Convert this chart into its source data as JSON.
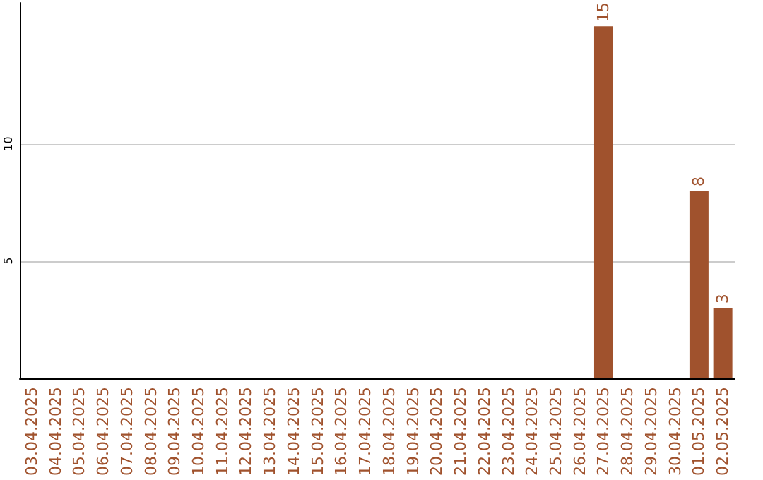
{
  "chart_data": {
    "type": "bar",
    "categories": [
      "03.04.2025",
      "04.04.2025",
      "05.04.2025",
      "06.04.2025",
      "07.04.2025",
      "08.04.2025",
      "09.04.2025",
      "10.04.2025",
      "11.04.2025",
      "12.04.2025",
      "13.04.2025",
      "14.04.2025",
      "15.04.2025",
      "16.04.2025",
      "17.04.2025",
      "18.04.2025",
      "19.04.2025",
      "20.04.2025",
      "21.04.2025",
      "22.04.2025",
      "23.04.2025",
      "24.04.2025",
      "25.04.2025",
      "26.04.2025",
      "27.04.2025",
      "28.04.2025",
      "29.04.2025",
      "30.04.2025",
      "01.05.2025",
      "02.05.2025"
    ],
    "values": [
      0,
      0,
      0,
      0,
      0,
      0,
      0,
      0,
      0,
      0,
      0,
      0,
      0,
      0,
      0,
      0,
      0,
      0,
      0,
      0,
      0,
      0,
      0,
      0,
      15,
      0,
      0,
      0,
      8,
      3
    ],
    "value_labels": [
      null,
      null,
      null,
      null,
      null,
      null,
      null,
      null,
      null,
      null,
      null,
      null,
      null,
      null,
      null,
      null,
      null,
      null,
      null,
      null,
      null,
      null,
      null,
      null,
      "15",
      null,
      null,
      null,
      "8",
      "3"
    ],
    "color": "#a0522d",
    "ylim": [
      0,
      16
    ],
    "yticks": [
      5,
      10
    ],
    "grid": "y"
  }
}
